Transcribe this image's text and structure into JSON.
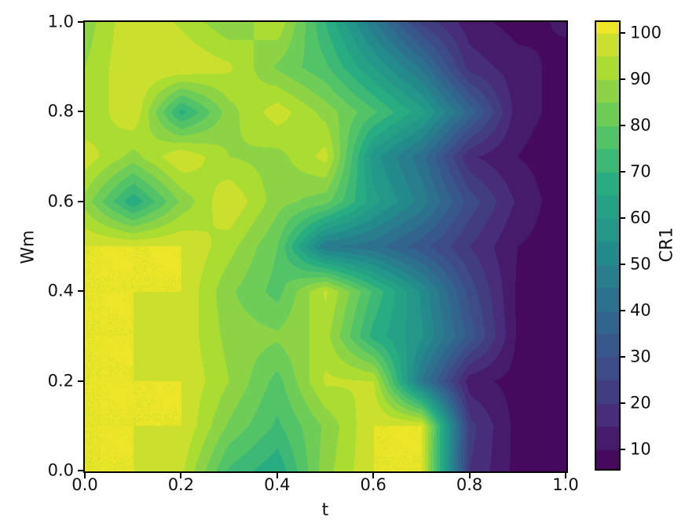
{
  "figure": {
    "background": "#ffffff",
    "text_color": "#111111"
  },
  "chart_data": {
    "type": "heatmap",
    "subtype": "filled_contour",
    "title": "",
    "xlabel": "t",
    "ylabel": "Wm",
    "colorbar_label": "CR1",
    "xlim": [
      0.0,
      1.0
    ],
    "ylim": [
      0.0,
      1.0
    ],
    "x_tick_values": [
      0.0,
      0.2,
      0.4,
      0.6,
      0.8,
      1.0
    ],
    "x_tick_labels": [
      "0.0",
      "0.2",
      "0.4",
      "0.6",
      "0.8",
      "1.0"
    ],
    "y_tick_values": [
      0.0,
      0.2,
      0.4,
      0.6,
      0.8,
      1.0
    ],
    "y_tick_labels": [
      "0.0",
      "0.2",
      "0.4",
      "0.6",
      "0.8",
      "1.0"
    ],
    "colorbar_tick_values": [
      100,
      90,
      80,
      70,
      60,
      50,
      40,
      30,
      20,
      10
    ],
    "colorbar_tick_labels": [
      "100",
      "90",
      "80",
      "70",
      "60",
      "50",
      "40",
      "30",
      "20",
      "10"
    ],
    "colormap": "viridis",
    "viridis_anchors": [
      "#440154",
      "#472d7b",
      "#3b528b",
      "#2c728e",
      "#21918c",
      "#27ad81",
      "#5ec962",
      "#aadc32",
      "#fde725"
    ],
    "level_min": 5,
    "level_max": 105,
    "level_step": 5,
    "colorbar_value_top": 102.4,
    "colorbar_value_bottom": 6.0,
    "x": [
      0.0,
      0.1,
      0.2,
      0.3,
      0.4,
      0.5,
      0.6,
      0.7,
      0.8,
      0.9,
      1.0
    ],
    "y": [
      0.0,
      0.1,
      0.2,
      0.3,
      0.4,
      0.5,
      0.6,
      0.7,
      0.8,
      0.9,
      1.0
    ],
    "values_note": "CR1 grid, rows ordered Wm=0.0 (bottom) to Wm=1.0 (top), cols t=0.0 to 1.0, estimated from contour colors",
    "values": [
      [
        100,
        100,
        96,
        74,
        66,
        88,
        100,
        100,
        20,
        8,
        7
      ],
      [
        100,
        100,
        100,
        84,
        74,
        86,
        100,
        100,
        22,
        8,
        8
      ],
      [
        100,
        100,
        100,
        90,
        78,
        96,
        95,
        45,
        12,
        8,
        8
      ],
      [
        100,
        100,
        99,
        88,
        86,
        92,
        68,
        56,
        33,
        9,
        8
      ],
      [
        100,
        100,
        100,
        86,
        78,
        96,
        74,
        54,
        28,
        9,
        8
      ],
      [
        100,
        100,
        100,
        92,
        80,
        46,
        42,
        32,
        20,
        10,
        7
      ],
      [
        88,
        66,
        86,
        100,
        87,
        82,
        62,
        48,
        28,
        14,
        6
      ],
      [
        98,
        88,
        100,
        90,
        88,
        97,
        57,
        42,
        16,
        10,
        7
      ],
      [
        90,
        100,
        68,
        88,
        98,
        88,
        76,
        62,
        38,
        12,
        8
      ],
      [
        90,
        100,
        100,
        96,
        84,
        76,
        60,
        44,
        18,
        12,
        8
      ],
      [
        87,
        100,
        94,
        86,
        94,
        70,
        46,
        24,
        12,
        8,
        11
      ]
    ]
  }
}
